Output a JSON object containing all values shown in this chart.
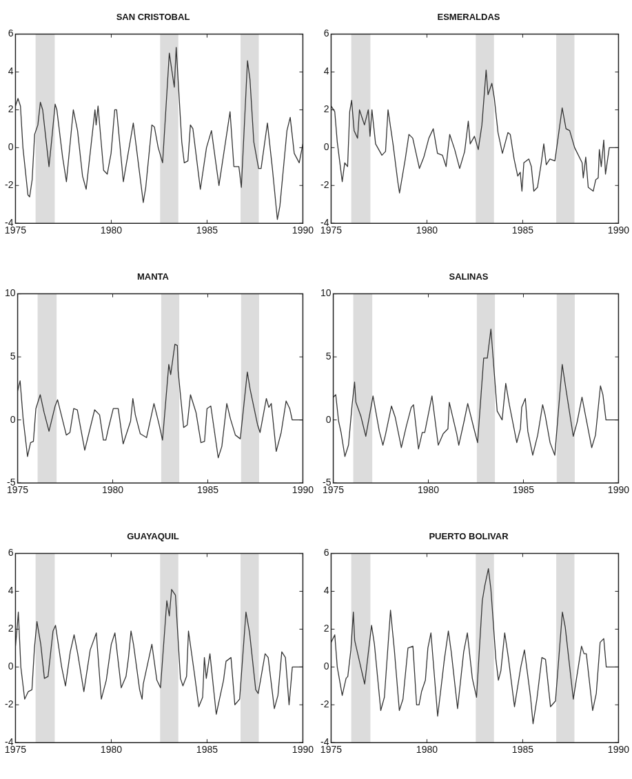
{
  "chart_data": [
    {
      "type": "line",
      "title": "SAN CRISTOBAL",
      "xlim": [
        1975,
        1990
      ],
      "xticks": [
        1975,
        1980,
        1985,
        1990
      ],
      "ylim": [
        -4,
        6
      ],
      "yticks": [
        -4,
        -2,
        0,
        2,
        4,
        6
      ],
      "bands": [
        {
          "axis": "x",
          "from": 1976.05,
          "to": 1977.05,
          "color": "#dcdcdc"
        },
        {
          "axis": "x",
          "from": 1982.55,
          "to": 1983.5,
          "color": "#dcdcdc"
        },
        {
          "axis": "x",
          "from": 1986.75,
          "to": 1987.7,
          "color": "#dcdcdc"
        }
      ],
      "series": [
        {
          "color": "#333333",
          "x": [
            1975.0,
            1975.13,
            1975.26,
            1975.39,
            1975.65,
            1975.74,
            1975.87,
            1976.0,
            1976.17,
            1976.3,
            1976.42,
            1976.75,
            1976.88,
            1977.07,
            1977.16,
            1977.46,
            1977.66,
            1978.02,
            1978.24,
            1978.5,
            1978.69,
            1979.15,
            1979.21,
            1979.31,
            1979.6,
            1979.79,
            1979.99,
            1980.18,
            1980.28,
            1980.63,
            1981.15,
            1981.67,
            1981.8,
            1982.12,
            1982.25,
            1982.45,
            1982.68,
            1983.03,
            1983.29,
            1983.39,
            1983.68,
            1983.81,
            1984.0,
            1984.13,
            1984.26,
            1984.65,
            1984.97,
            1985.23,
            1985.43,
            1985.62,
            1986.2,
            1986.4,
            1986.66,
            1986.79,
            1987.11,
            1987.24,
            1987.44,
            1987.69,
            1987.82,
            1988.15,
            1988.41,
            1988.67,
            1988.8,
            1989.17,
            1989.34,
            1989.55,
            1989.81,
            1990.0
          ],
          "values": [
            2.2,
            2.6,
            2.2,
            0.0,
            -2.5,
            -2.6,
            -1.7,
            0.7,
            1.2,
            2.4,
            2.0,
            -1.0,
            0.3,
            2.3,
            2.0,
            -0.5,
            -1.8,
            2.0,
            0.9,
            -1.5,
            -2.2,
            2.0,
            1.2,
            2.2,
            -1.2,
            -1.4,
            -0.3,
            2.0,
            2.0,
            -1.8,
            1.3,
            -2.9,
            -2.1,
            1.2,
            1.1,
            0.0,
            -0.8,
            5.0,
            3.2,
            5.3,
            0.3,
            -0.8,
            -0.7,
            1.2,
            1.0,
            -2.2,
            0.0,
            0.9,
            -0.6,
            -2.0,
            1.9,
            -1.0,
            -1.0,
            -2.1,
            4.6,
            3.6,
            0.3,
            -1.1,
            -1.1,
            1.3,
            -1.1,
            -3.8,
            -3.1,
            0.9,
            1.6,
            -0.3,
            -0.8,
            0.2
          ]
        }
      ]
    },
    {
      "type": "line",
      "title": "ESMERALDAS",
      "xlim": [
        1975,
        1990
      ],
      "xticks": [
        1975,
        1980,
        1985,
        1990
      ],
      "ylim": [
        -4,
        6
      ],
      "yticks": [
        -4,
        -2,
        0,
        2,
        4,
        6
      ],
      "bands": [
        {
          "axis": "x",
          "from": 1976.05,
          "to": 1977.05,
          "color": "#dcdcdc"
        },
        {
          "axis": "x",
          "from": 1982.55,
          "to": 1983.5,
          "color": "#dcdcdc"
        },
        {
          "axis": "x",
          "from": 1986.75,
          "to": 1987.7,
          "color": "#dcdcdc"
        }
      ],
      "series": [
        {
          "color": "#333333",
          "x": [
            1975.0,
            1975.19,
            1975.32,
            1975.58,
            1975.71,
            1975.86,
            1975.97,
            1976.07,
            1976.2,
            1976.38,
            1976.48,
            1976.74,
            1976.94,
            1977.03,
            1977.13,
            1977.32,
            1977.65,
            1977.84,
            1977.97,
            1978.23,
            1978.48,
            1978.57,
            1978.87,
            1979.06,
            1979.26,
            1979.61,
            1979.84,
            1980.1,
            1980.33,
            1980.55,
            1980.81,
            1981.0,
            1981.19,
            1981.45,
            1981.71,
            1981.97,
            1982.16,
            1982.26,
            1982.48,
            1982.68,
            1982.87,
            1983.09,
            1983.19,
            1983.39,
            1983.52,
            1983.71,
            1983.94,
            1984.23,
            1984.35,
            1984.55,
            1984.74,
            1984.87,
            1984.96,
            1985.06,
            1985.32,
            1985.45,
            1985.58,
            1985.77,
            1985.97,
            1986.1,
            1986.23,
            1986.42,
            1986.68,
            1987.06,
            1987.26,
            1987.45,
            1987.71,
            1988.1,
            1988.16,
            1988.29,
            1988.42,
            1988.68,
            1988.81,
            1988.94,
            1989.0,
            1989.1,
            1989.23,
            1989.32,
            1989.52,
            1990.0
          ],
          "values": [
            2.2,
            1.9,
            0.3,
            -1.8,
            -0.8,
            -1.0,
            1.9,
            2.5,
            0.9,
            0.5,
            2.0,
            1.2,
            2.0,
            0.6,
            2.0,
            0.2,
            -0.4,
            -0.2,
            2.0,
            0.2,
            -1.8,
            -2.4,
            -0.6,
            0.7,
            0.5,
            -1.1,
            -0.5,
            0.5,
            1.0,
            -0.3,
            -0.4,
            -1.0,
            0.7,
            -0.1,
            -1.1,
            -0.2,
            1.4,
            0.2,
            0.6,
            -0.1,
            1.2,
            4.1,
            2.8,
            3.4,
            2.6,
            0.8,
            -0.3,
            0.8,
            0.7,
            -0.6,
            -1.5,
            -1.3,
            -2.3,
            -0.8,
            -0.6,
            -1.0,
            -2.3,
            -2.1,
            -0.8,
            0.2,
            -0.9,
            -0.6,
            -0.7,
            2.1,
            1.0,
            0.9,
            0.0,
            -0.8,
            -1.6,
            -0.5,
            -2.1,
            -2.3,
            -1.7,
            -1.6,
            -0.1,
            -1.0,
            0.4,
            -1.4,
            0.0,
            0.0
          ]
        }
      ]
    },
    {
      "type": "line",
      "title": "MANTA",
      "xlim": [
        1975,
        1990
      ],
      "xticks": [
        1975,
        1980,
        1985,
        1990
      ],
      "ylim": [
        -5,
        10
      ],
      "yticks": [
        -5,
        0,
        5,
        10
      ],
      "bands": [
        {
          "axis": "x",
          "from": 1976.05,
          "to": 1977.05,
          "color": "#dcdcdc"
        },
        {
          "axis": "x",
          "from": 1982.55,
          "to": 1983.5,
          "color": "#dcdcdc"
        },
        {
          "axis": "x",
          "from": 1986.75,
          "to": 1987.7,
          "color": "#dcdcdc"
        }
      ],
      "series": [
        {
          "color": "#333333",
          "x": [
            1975.0,
            1975.13,
            1975.29,
            1975.52,
            1975.68,
            1975.83,
            1975.96,
            1976.19,
            1976.39,
            1976.65,
            1976.97,
            1977.1,
            1977.56,
            1977.75,
            1977.95,
            1978.14,
            1978.53,
            1979.05,
            1979.31,
            1979.51,
            1979.64,
            1979.77,
            1980.03,
            1980.29,
            1980.55,
            1980.94,
            1981.06,
            1981.19,
            1981.45,
            1981.78,
            1982.17,
            1982.43,
            1982.62,
            1982.95,
            1983.05,
            1983.27,
            1983.4,
            1983.44,
            1983.73,
            1983.92,
            1984.09,
            1984.38,
            1984.64,
            1984.83,
            1984.96,
            1985.16,
            1985.55,
            1985.74,
            1986.0,
            1986.19,
            1986.45,
            1986.71,
            1987.08,
            1987.23,
            1987.62,
            1987.75,
            1988.08,
            1988.21,
            1988.34,
            1988.6,
            1988.86,
            1989.12,
            1989.31,
            1989.44,
            1990.0
          ],
          "values": [
            2.3,
            3.1,
            0.1,
            -2.9,
            -1.8,
            -1.7,
            0.9,
            2.0,
            0.6,
            -0.9,
            1.1,
            1.6,
            -1.2,
            -1.0,
            0.9,
            0.8,
            -2.4,
            0.8,
            0.4,
            -1.6,
            -1.6,
            -0.7,
            0.9,
            0.9,
            -1.9,
            -0.1,
            1.7,
            0.4,
            -1.1,
            -1.4,
            1.3,
            -0.3,
            -1.6,
            4.4,
            3.6,
            6.0,
            5.9,
            3.9,
            -0.6,
            -0.4,
            2.0,
            0.6,
            -1.8,
            -1.7,
            0.9,
            1.1,
            -3.0,
            -2.1,
            1.3,
            0.1,
            -1.2,
            -1.5,
            3.8,
            2.4,
            -0.4,
            -1.0,
            1.7,
            1.0,
            1.3,
            -2.5,
            -1.0,
            1.5,
            0.9,
            0.0,
            0.0
          ]
        }
      ]
    },
    {
      "type": "line",
      "title": "SALINAS",
      "xlim": [
        1975,
        1990
      ],
      "xticks": [
        1975,
        1980,
        1985,
        1990
      ],
      "ylim": [
        -5,
        10
      ],
      "yticks": [
        -5,
        0,
        5,
        10
      ],
      "bands": [
        {
          "axis": "x",
          "from": 1976.05,
          "to": 1977.05,
          "color": "#dcdcdc"
        },
        {
          "axis": "x",
          "from": 1982.55,
          "to": 1983.5,
          "color": "#dcdcdc"
        },
        {
          "axis": "x",
          "from": 1986.75,
          "to": 1987.7,
          "color": "#dcdcdc"
        }
      ],
      "series": [
        {
          "color": "#333333",
          "x": [
            1975.0,
            1975.13,
            1975.28,
            1975.41,
            1975.61,
            1975.8,
            1975.99,
            1976.12,
            1976.19,
            1976.45,
            1976.71,
            1977.09,
            1977.42,
            1977.61,
            1977.74,
            1978.06,
            1978.26,
            1978.58,
            1978.84,
            1979.1,
            1979.22,
            1979.48,
            1979.68,
            1979.81,
            1980.19,
            1980.52,
            1980.78,
            1981.03,
            1981.1,
            1981.49,
            1981.6,
            1981.88,
            1982.07,
            1982.4,
            1982.59,
            1982.91,
            1983.1,
            1983.29,
            1983.62,
            1983.88,
            1984.07,
            1984.26,
            1984.65,
            1984.84,
            1984.91,
            1985.1,
            1985.23,
            1985.49,
            1985.75,
            1986.01,
            1986.14,
            1986.4,
            1986.65,
            1987.04,
            1987.24,
            1987.62,
            1987.82,
            1988.08,
            1988.27,
            1988.59,
            1988.79,
            1989.05,
            1989.18,
            1989.34,
            1990.0
          ],
          "values": [
            1.8,
            2.0,
            -0.1,
            -1.0,
            -2.9,
            -2.0,
            1.2,
            3.0,
            1.4,
            0.3,
            -1.3,
            1.9,
            -0.9,
            -2.0,
            -1.2,
            1.1,
            0.2,
            -2.2,
            -0.5,
            1.0,
            1.2,
            -2.3,
            -1.0,
            -1.0,
            1.9,
            -2.0,
            -1.1,
            -0.7,
            1.4,
            -1.1,
            -2.0,
            -0.1,
            1.3,
            -0.7,
            -1.8,
            4.9,
            4.9,
            7.2,
            0.7,
            0.0,
            2.9,
            1.2,
            -1.8,
            -0.7,
            1.0,
            1.7,
            -0.9,
            -2.8,
            -1.2,
            1.2,
            0.4,
            -1.8,
            -2.8,
            4.4,
            2.4,
            -1.3,
            -0.2,
            1.8,
            0.3,
            -2.2,
            -1.2,
            2.7,
            2.0,
            0.0,
            0.0
          ]
        }
      ]
    },
    {
      "type": "line",
      "title": "GUAYAQUIL",
      "xlim": [
        1975,
        1990
      ],
      "xticks": [
        1975,
        1980,
        1985,
        1990
      ],
      "ylim": [
        -4,
        6
      ],
      "yticks": [
        -4,
        -2,
        0,
        2,
        4,
        6
      ],
      "bands": [
        {
          "axis": "x",
          "from": 1976.05,
          "to": 1977.05,
          "color": "#dcdcdc"
        },
        {
          "axis": "x",
          "from": 1982.55,
          "to": 1983.5,
          "color": "#dcdcdc"
        },
        {
          "axis": "x",
          "from": 1986.75,
          "to": 1987.7,
          "color": "#dcdcdc"
        }
      ],
      "series": [
        {
          "color": "#333333",
          "x": [
            1975.0,
            1975.09,
            1975.15,
            1975.28,
            1975.48,
            1975.67,
            1975.86,
            1975.99,
            1976.12,
            1976.32,
            1976.51,
            1976.7,
            1976.96,
            1977.09,
            1977.41,
            1977.61,
            1977.86,
            1978.06,
            1978.25,
            1978.57,
            1978.9,
            1979.22,
            1979.48,
            1979.74,
            1980.0,
            1980.19,
            1980.52,
            1980.77,
            1980.9,
            1981.03,
            1981.16,
            1981.48,
            1981.61,
            1981.67,
            1982.12,
            1982.38,
            1982.57,
            1982.9,
            1983.03,
            1983.15,
            1983.35,
            1983.61,
            1983.74,
            1983.93,
            1984.03,
            1984.32,
            1984.57,
            1984.77,
            1984.86,
            1984.96,
            1985.15,
            1985.48,
            1985.86,
            1985.99,
            1986.25,
            1986.45,
            1986.7,
            1987.03,
            1987.22,
            1987.54,
            1987.67,
            1988.03,
            1988.19,
            1988.51,
            1988.7,
            1988.9,
            1989.09,
            1989.28,
            1989.35,
            1989.45,
            1990.0
          ],
          "values": [
            1.1,
            2.1,
            2.9,
            0.0,
            -1.7,
            -1.3,
            -1.2,
            1.0,
            2.4,
            1.2,
            -0.6,
            -0.5,
            1.9,
            2.2,
            0.0,
            -1.0,
            0.8,
            1.7,
            0.7,
            -1.3,
            0.9,
            1.8,
            -1.7,
            -0.7,
            1.2,
            1.8,
            -1.1,
            -0.5,
            0.5,
            1.9,
            1.2,
            -1.2,
            -1.7,
            -0.9,
            1.2,
            -0.7,
            -1.1,
            3.5,
            2.7,
            4.1,
            3.8,
            -0.6,
            -1.0,
            -0.5,
            1.9,
            -0.2,
            -2.1,
            -1.6,
            0.5,
            -0.6,
            0.7,
            -2.5,
            -0.7,
            0.3,
            0.5,
            -2.0,
            -1.7,
            2.9,
            1.8,
            -1.2,
            -1.4,
            0.7,
            0.5,
            -2.2,
            -1.5,
            0.8,
            0.5,
            -2.0,
            -1.2,
            0.0,
            0.0
          ]
        }
      ]
    },
    {
      "type": "line",
      "title": "PUERTO BOLIVAR",
      "xlim": [
        1975,
        1990
      ],
      "xticks": [
        1975,
        1980,
        1985,
        1990
      ],
      "ylim": [
        -4,
        6
      ],
      "yticks": [
        -4,
        -2,
        0,
        2,
        4,
        6
      ],
      "bands": [
        {
          "axis": "x",
          "from": 1976.05,
          "to": 1977.05,
          "color": "#dcdcdc"
        },
        {
          "axis": "x",
          "from": 1982.55,
          "to": 1983.5,
          "color": "#dcdcdc"
        },
        {
          "axis": "x",
          "from": 1986.75,
          "to": 1987.7,
          "color": "#dcdcdc"
        }
      ],
      "series": [
        {
          "color": "#333333",
          "x": [
            1975.0,
            1975.19,
            1975.32,
            1975.58,
            1975.78,
            1975.87,
            1976.03,
            1976.16,
            1976.23,
            1976.75,
            1977.11,
            1977.26,
            1977.59,
            1977.78,
            1978.1,
            1978.3,
            1978.56,
            1978.75,
            1979.01,
            1979.27,
            1979.46,
            1979.59,
            1979.72,
            1979.92,
            1980.05,
            1980.21,
            1980.56,
            1980.76,
            1980.91,
            1981.12,
            1981.27,
            1981.6,
            1981.92,
            1982.11,
            1982.37,
            1982.59,
            1982.89,
            1983.02,
            1983.21,
            1983.34,
            1983.6,
            1983.73,
            1983.86,
            1984.06,
            1984.25,
            1984.57,
            1984.9,
            1985.09,
            1985.41,
            1985.54,
            1985.74,
            1986.0,
            1986.19,
            1986.45,
            1986.71,
            1987.07,
            1987.22,
            1987.64,
            1988.07,
            1988.2,
            1988.32,
            1988.65,
            1988.84,
            1989.04,
            1989.23,
            1989.36,
            1990.0
          ],
          "values": [
            1.3,
            1.7,
            0.0,
            -1.5,
            -0.6,
            -0.5,
            0.9,
            2.9,
            1.4,
            -0.9,
            2.2,
            1.2,
            -2.3,
            -1.6,
            3.0,
            0.9,
            -2.3,
            -1.7,
            1.0,
            1.1,
            -2.0,
            -2.0,
            -1.3,
            -0.7,
            1.0,
            1.8,
            -2.6,
            -0.9,
            0.4,
            1.9,
            0.8,
            -2.2,
            0.8,
            1.8,
            -0.6,
            -1.6,
            3.5,
            4.3,
            5.2,
            4.1,
            0.4,
            -0.7,
            -0.2,
            1.8,
            0.5,
            -2.1,
            0.0,
            0.9,
            -1.6,
            -3.0,
            -1.7,
            0.5,
            0.4,
            -2.1,
            -1.8,
            2.9,
            2.1,
            -1.7,
            1.1,
            0.7,
            0.7,
            -2.3,
            -1.4,
            1.3,
            1.5,
            0.0,
            0.0
          ]
        }
      ]
    }
  ]
}
